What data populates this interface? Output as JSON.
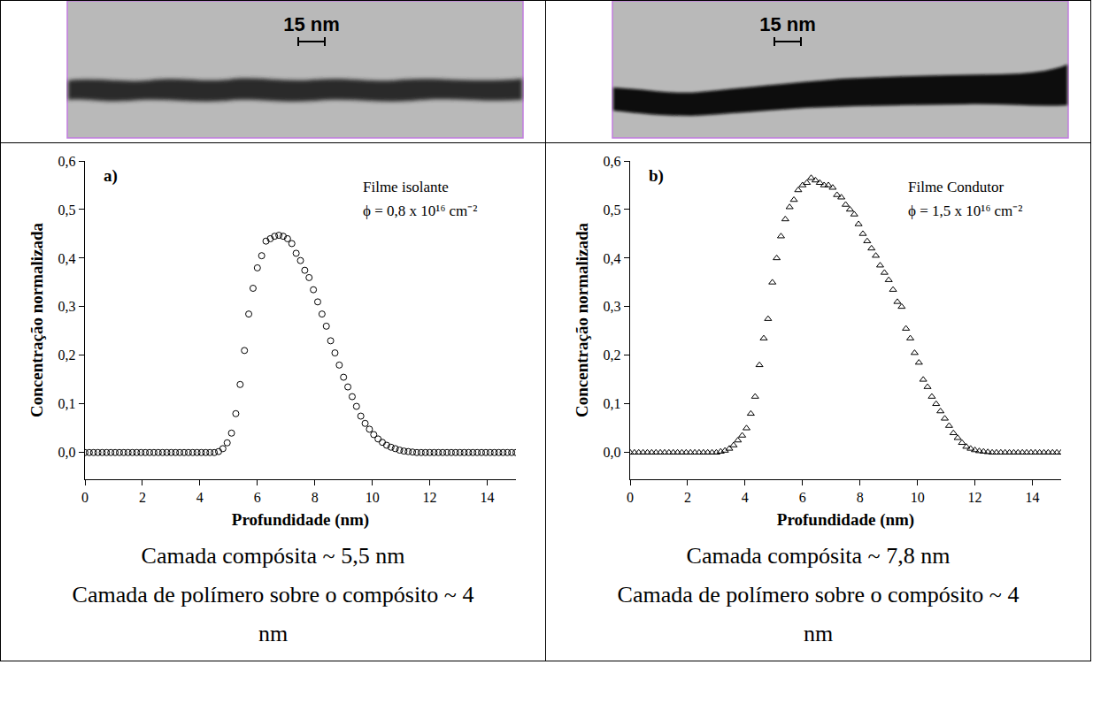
{
  "chart_data": [
    {
      "type": "scatter",
      "panel_label": "a)",
      "micrograph": {
        "scale_bar": "15 nm"
      },
      "annotations": [
        "Filme isolante",
        "ϕ = 0,8 x 10¹⁶ cm⁻²"
      ],
      "x_label": "Profundidade (nm)",
      "y_label": "Concentração normalizada",
      "marker": "open-circle",
      "color": "#000000",
      "x": [
        0,
        0.15,
        0.3,
        0.45,
        0.6,
        0.75,
        0.9,
        1.05,
        1.2,
        1.35,
        1.5,
        1.65,
        1.8,
        1.95,
        2.1,
        2.25,
        2.4,
        2.55,
        2.7,
        2.85,
        3,
        3.15,
        3.3,
        3.45,
        3.6,
        3.75,
        3.9,
        4.05,
        4.2,
        4.35,
        4.5,
        4.65,
        4.8,
        4.95,
        5.1,
        5.25,
        5.4,
        5.55,
        5.7,
        5.85,
        6,
        6.15,
        6.3,
        6.45,
        6.6,
        6.75,
        6.9,
        7.05,
        7.2,
        7.35,
        7.5,
        7.65,
        7.8,
        7.95,
        8.1,
        8.25,
        8.4,
        8.55,
        8.7,
        8.85,
        9,
        9.15,
        9.3,
        9.45,
        9.6,
        9.75,
        9.9,
        10.05,
        10.2,
        10.35,
        10.5,
        10.65,
        10.8,
        10.95,
        11.1,
        11.25,
        11.4,
        11.55,
        11.7,
        11.85,
        12,
        12.15,
        12.3,
        12.45,
        12.6,
        12.75,
        12.9,
        13.05,
        13.2,
        13.35,
        13.5,
        13.65,
        13.8,
        13.95,
        14.1,
        14.25,
        14.4,
        14.55,
        14.7,
        14.85,
        15
      ],
      "values": [
        0,
        0,
        0,
        0,
        0,
        0,
        0,
        0,
        0,
        0,
        0,
        0,
        0,
        0,
        0,
        0,
        0,
        0,
        0,
        0,
        0,
        0,
        0,
        0,
        0,
        0,
        0,
        0,
        0,
        0,
        0,
        0.002,
        0.008,
        0.02,
        0.04,
        0.08,
        0.14,
        0.21,
        0.285,
        0.338,
        0.38,
        0.405,
        0.435,
        0.44,
        0.445,
        0.447,
        0.445,
        0.44,
        0.43,
        0.41,
        0.395,
        0.375,
        0.36,
        0.335,
        0.31,
        0.285,
        0.26,
        0.23,
        0.205,
        0.18,
        0.155,
        0.135,
        0.115,
        0.095,
        0.075,
        0.06,
        0.048,
        0.037,
        0.028,
        0.021,
        0.015,
        0.011,
        0.008,
        0.005,
        0.003,
        0.002,
        0.001,
        0,
        0,
        0,
        0,
        0,
        0,
        0,
        0,
        0,
        0,
        0,
        0,
        0,
        0,
        0,
        0,
        0,
        0,
        0,
        0,
        0,
        0,
        0,
        0
      ],
      "xlim": [
        0,
        15
      ],
      "xticks": [
        0,
        2,
        4,
        6,
        8,
        10,
        12,
        14
      ],
      "ylim": [
        -0.055,
        0.6
      ],
      "yticks": [
        {
          "value": 0,
          "label": "0,0"
        },
        {
          "value": 0.1,
          "label": "0,1"
        },
        {
          "value": 0.2,
          "label": "0,2"
        },
        {
          "value": 0.3,
          "label": "0,3"
        },
        {
          "value": 0.4,
          "label": "0,4"
        },
        {
          "value": 0.5,
          "label": "0,5"
        },
        {
          "value": 0.6,
          "label": "0,6"
        }
      ],
      "grid": false,
      "caption": [
        "Camada compósita ~ 5,5 nm",
        "Camada de polímero sobre o compósito ~ 4 nm"
      ]
    },
    {
      "type": "scatter",
      "panel_label": "b)",
      "micrograph": {
        "scale_bar": "15 nm"
      },
      "annotations": [
        "Filme Condutor",
        "ϕ = 1,5 x 10¹⁶ cm⁻²"
      ],
      "x_label": "Profundidade (nm)",
      "y_label": "Concentração normalizada",
      "marker": "open-triangle",
      "color": "#000000",
      "x": [
        0,
        0.15,
        0.3,
        0.45,
        0.6,
        0.75,
        0.9,
        1.05,
        1.2,
        1.35,
        1.5,
        1.65,
        1.8,
        1.95,
        2.1,
        2.25,
        2.4,
        2.55,
        2.7,
        2.85,
        3,
        3.15,
        3.3,
        3.45,
        3.6,
        3.75,
        3.9,
        4.05,
        4.2,
        4.35,
        4.5,
        4.65,
        4.8,
        4.95,
        5.1,
        5.25,
        5.4,
        5.55,
        5.7,
        5.85,
        6,
        6.15,
        6.3,
        6.45,
        6.6,
        6.75,
        6.9,
        7.05,
        7.2,
        7.35,
        7.5,
        7.65,
        7.8,
        7.95,
        8.1,
        8.25,
        8.4,
        8.55,
        8.7,
        8.85,
        9,
        9.15,
        9.3,
        9.45,
        9.6,
        9.75,
        9.9,
        10.05,
        10.2,
        10.35,
        10.5,
        10.65,
        10.8,
        10.95,
        11.1,
        11.25,
        11.4,
        11.55,
        11.7,
        11.85,
        12,
        12.15,
        12.3,
        12.45,
        12.6,
        12.75,
        12.9,
        13.05,
        13.2,
        13.35,
        13.5,
        13.65,
        13.8,
        13.95,
        14.1,
        14.25,
        14.4,
        14.55,
        14.7,
        14.85,
        15
      ],
      "values": [
        0,
        0,
        0,
        0,
        0,
        0,
        0,
        0,
        0,
        0,
        0,
        0,
        0,
        0,
        0,
        0,
        0,
        0,
        0,
        0,
        0,
        0.002,
        0.004,
        0.008,
        0.015,
        0.025,
        0.035,
        0.05,
        0.08,
        0.115,
        0.18,
        0.235,
        0.275,
        0.35,
        0.4,
        0.445,
        0.48,
        0.505,
        0.52,
        0.54,
        0.55,
        0.555,
        0.565,
        0.56,
        0.555,
        0.55,
        0.55,
        0.545,
        0.53,
        0.525,
        0.51,
        0.5,
        0.49,
        0.47,
        0.45,
        0.435,
        0.42,
        0.405,
        0.385,
        0.37,
        0.355,
        0.335,
        0.31,
        0.3,
        0.255,
        0.235,
        0.205,
        0.185,
        0.15,
        0.135,
        0.115,
        0.1,
        0.085,
        0.07,
        0.055,
        0.04,
        0.03,
        0.02,
        0.012,
        0.008,
        0.005,
        0.003,
        0.002,
        0.001,
        0,
        0,
        0,
        0,
        0,
        0,
        0,
        0,
        0,
        0,
        0,
        0,
        0,
        0,
        0,
        0,
        0
      ],
      "xlim": [
        0,
        15
      ],
      "xticks": [
        0,
        2,
        4,
        6,
        8,
        10,
        12,
        14
      ],
      "ylim": [
        -0.055,
        0.6
      ],
      "yticks": [
        {
          "value": 0,
          "label": "0,0"
        },
        {
          "value": 0.1,
          "label": "0,1"
        },
        {
          "value": 0.2,
          "label": "0,2"
        },
        {
          "value": 0.3,
          "label": "0,3"
        },
        {
          "value": 0.4,
          "label": "0,4"
        },
        {
          "value": 0.5,
          "label": "0,5"
        },
        {
          "value": 0.6,
          "label": "0,6"
        }
      ],
      "grid": false,
      "caption": [
        "Camada compósita ~ 7,8 nm",
        "Camada de polímero sobre o compósito ~ 4 nm"
      ]
    }
  ]
}
